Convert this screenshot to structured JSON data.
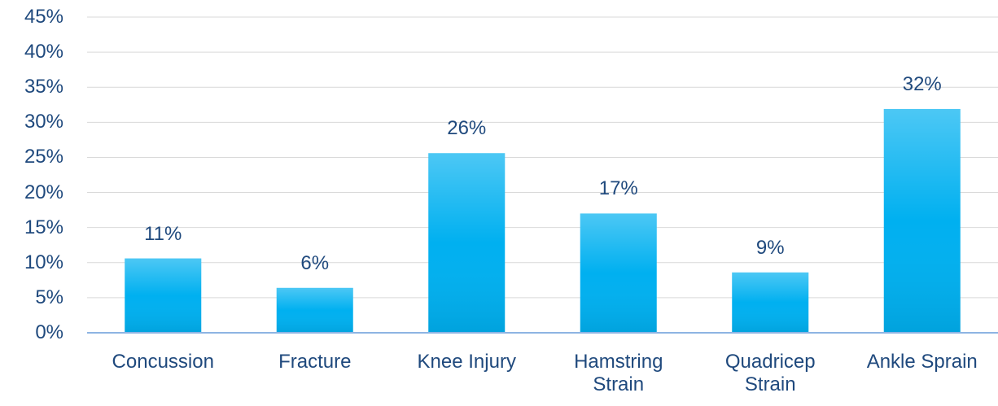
{
  "chart_data": {
    "type": "bar",
    "categories": [
      "Concussion",
      "Fracture",
      "Knee Injury",
      "Hamstring\nStrain",
      "Quadricep\nStrain",
      "Ankle Sprain"
    ],
    "values": [
      10.6,
      6.4,
      25.6,
      17.0,
      8.6,
      31.9
    ],
    "value_labels": [
      "11%",
      "6%",
      "26%",
      "17%",
      "9%",
      "32%"
    ],
    "color": "#00b0f0",
    "ylim": [
      0,
      45
    ],
    "yticks": [
      {
        "value": 0,
        "label": "0%"
      },
      {
        "value": 5,
        "label": "5%"
      },
      {
        "value": 10,
        "label": "10%"
      },
      {
        "value": 15,
        "label": "15%"
      },
      {
        "value": 20,
        "label": "20%"
      },
      {
        "value": 25,
        "label": "25%"
      },
      {
        "value": 30,
        "label": "30%"
      },
      {
        "value": 35,
        "label": "35%"
      },
      {
        "value": 40,
        "label": "40%"
      },
      {
        "value": 45,
        "label": "45%"
      }
    ],
    "grid": true
  }
}
